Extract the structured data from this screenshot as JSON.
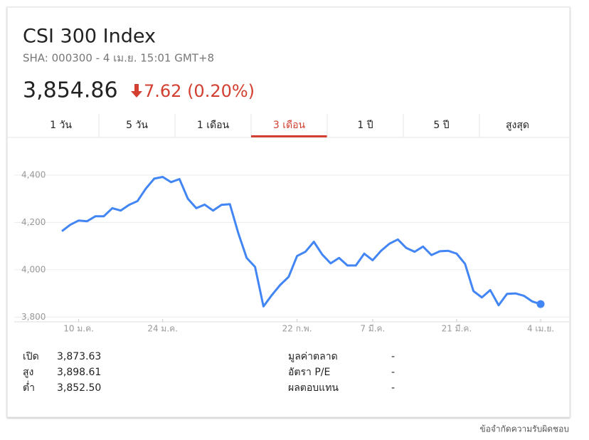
{
  "header": {
    "title": "CSI 300 Index",
    "subtitle": "SHA: 000300 - 4 เม.ย. 15:01 GMT+8",
    "price": "3,854.86",
    "change": "7.62 (0.20%)"
  },
  "tabs": {
    "labels": [
      "1 วัน",
      "5 วัน",
      "1 เดือน",
      "3 เดือน",
      "1 ปี",
      "5 ปี",
      "สูงสุด"
    ],
    "selected": 3
  },
  "chart_data": {
    "type": "line",
    "categories": [
      null,
      null,
      "10 ม.ค.",
      null,
      null,
      null,
      null,
      null,
      null,
      null,
      null,
      null,
      "24 ม.ค.",
      null,
      null,
      null,
      null,
      null,
      null,
      null,
      null,
      null,
      null,
      null,
      null,
      null,
      null,
      null,
      "22 ก.พ.",
      null,
      null,
      null,
      null,
      null,
      null,
      null,
      null,
      "7 มี.ค.",
      null,
      null,
      null,
      null,
      null,
      null,
      null,
      null,
      null,
      "21 มี.ค.",
      null,
      null,
      null,
      null,
      null,
      null,
      null,
      null,
      null,
      "4 เม.ย."
    ],
    "series": [
      {
        "color": "#4285f4",
        "values": [
          4163,
          4190,
          4208,
          4205,
          4226,
          4226,
          4260,
          4250,
          4274,
          4290,
          4343,
          4385,
          4392,
          4370,
          4383,
          4300,
          4260,
          4275,
          4250,
          4274,
          4277,
          4155,
          4050,
          4012,
          3845,
          3893,
          3936,
          3970,
          4058,
          4076,
          4118,
          4064,
          4027,
          4050,
          4018,
          4018,
          4068,
          4040,
          4080,
          4110,
          4128,
          4092,
          4076,
          4098,
          4062,
          4078,
          4080,
          4068,
          4025,
          3910,
          3883,
          3914,
          3850,
          3898,
          3900,
          3890,
          3866,
          3855
        ]
      }
    ],
    "ylim": [
      3780,
      4550
    ],
    "yticks": [
      {
        "value": 3800,
        "label": "3,800"
      },
      {
        "value": 4000,
        "label": "4,000"
      },
      {
        "value": 4200,
        "label": "4,200"
      },
      {
        "value": 4400,
        "label": "4,400"
      }
    ],
    "grid": true
  },
  "stats": {
    "left": [
      [
        "เปิด",
        "3,873.63"
      ],
      [
        "สูง",
        "3,898.61"
      ],
      [
        "ต่ำ",
        "3,852.50"
      ]
    ],
    "right": [
      [
        "มูลค่าตลาด",
        "-"
      ],
      [
        "อัตรา P/E",
        "-"
      ],
      [
        "ผลตอบแทน",
        "-"
      ]
    ]
  },
  "footer": "ข้อจำกัดความรับผิดชอบ"
}
